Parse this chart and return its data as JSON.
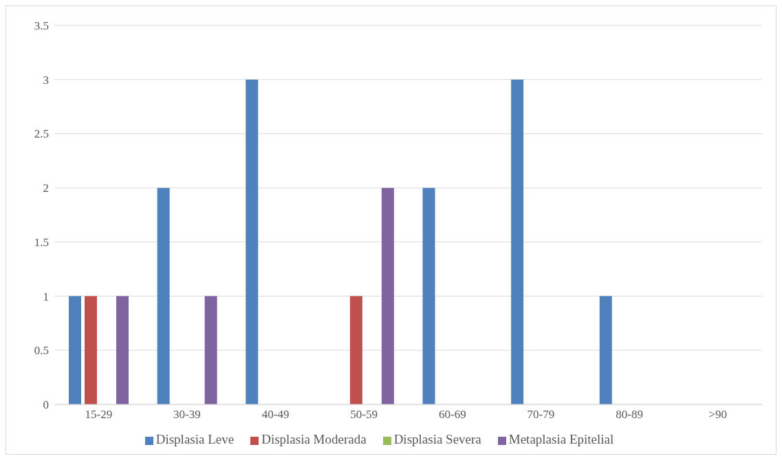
{
  "chart_data": {
    "type": "bar",
    "categories": [
      "15-29",
      "30-39",
      "40-49",
      "50-59",
      "60-69",
      "70-79",
      "80-89",
      ">90"
    ],
    "series": [
      {
        "name": "Displasia Leve",
        "color": "#4f81bd",
        "values": [
          1,
          2,
          3,
          0,
          2,
          3,
          1,
          0
        ]
      },
      {
        "name": "Displasia Moderada",
        "color": "#c0504d",
        "values": [
          1,
          0,
          0,
          1,
          0,
          0,
          0,
          0
        ]
      },
      {
        "name": "Displasia Severa",
        "color": "#9bbb59",
        "values": [
          0,
          0,
          0,
          0,
          0,
          0,
          0,
          0
        ]
      },
      {
        "name": "Metaplasia Epitelial",
        "color": "#8064a2",
        "values": [
          1,
          1,
          0,
          2,
          0,
          0,
          0,
          0
        ]
      }
    ],
    "ylim": [
      0,
      3.5
    ],
    "yticks": [
      0,
      0.5,
      1,
      1.5,
      2,
      2.5,
      3,
      3.5
    ],
    "grid": "y",
    "legend": "bottom"
  }
}
